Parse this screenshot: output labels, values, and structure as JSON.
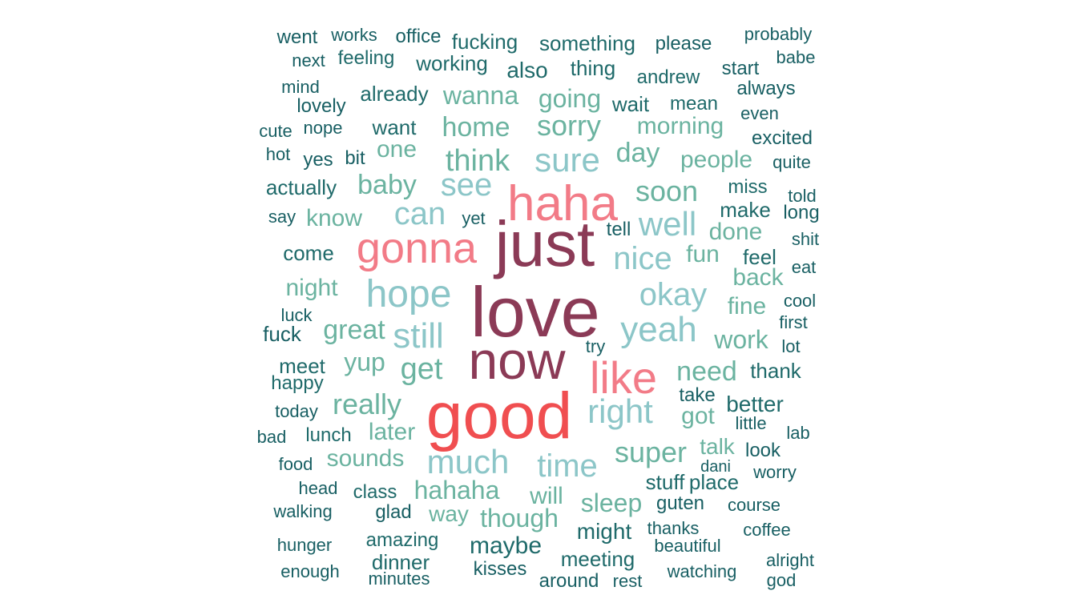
{
  "colors": {
    "t1": "#8B3A56",
    "t2": "#F27B87",
    "t3": "#F04E50",
    "t4": "#8CC6C8",
    "t5": "#6BB3A0",
    "t6": "#1F6A6A",
    "t7": "#185F63"
  },
  "words": [
    {
      "text": "love",
      "tier": "t1"
    },
    {
      "text": "just",
      "tier": "t1"
    },
    {
      "text": "now",
      "tier": "t1"
    },
    {
      "text": "good",
      "tier": "t3"
    },
    {
      "text": "haha",
      "tier": "t2"
    },
    {
      "text": "gonna",
      "tier": "t2"
    },
    {
      "text": "like",
      "tier": "t2"
    },
    {
      "text": "hope",
      "tier": "t4"
    },
    {
      "text": "yeah",
      "tier": "t4"
    },
    {
      "text": "okay",
      "tier": "t4"
    },
    {
      "text": "nice",
      "tier": "t4"
    },
    {
      "text": "right",
      "tier": "t4"
    },
    {
      "text": "much",
      "tier": "t4"
    },
    {
      "text": "still",
      "tier": "t4"
    },
    {
      "text": "time",
      "tier": "t4"
    },
    {
      "text": "sure",
      "tier": "t4"
    },
    {
      "text": "well",
      "tier": "t4"
    },
    {
      "text": "can",
      "tier": "t4"
    },
    {
      "text": "see",
      "tier": "t4"
    },
    {
      "text": "think",
      "tier": "t5"
    },
    {
      "text": "sorry",
      "tier": "t5"
    },
    {
      "text": "soon",
      "tier": "t5"
    },
    {
      "text": "home",
      "tier": "t5"
    },
    {
      "text": "really",
      "tier": "t5"
    },
    {
      "text": "get",
      "tier": "t5"
    },
    {
      "text": "great",
      "tier": "t5"
    },
    {
      "text": "need",
      "tier": "t5"
    },
    {
      "text": "baby",
      "tier": "t5"
    },
    {
      "text": "wanna",
      "tier": "t5"
    },
    {
      "text": "going",
      "tier": "t5"
    },
    {
      "text": "morning",
      "tier": "t5"
    },
    {
      "text": "day",
      "tier": "t5"
    },
    {
      "text": "people",
      "tier": "t5"
    },
    {
      "text": "fun",
      "tier": "t5"
    },
    {
      "text": "done",
      "tier": "t5"
    },
    {
      "text": "super",
      "tier": "t5"
    },
    {
      "text": "hahaha",
      "tier": "t5"
    },
    {
      "text": "sleep",
      "tier": "t5"
    },
    {
      "text": "though",
      "tier": "t5"
    },
    {
      "text": "yup",
      "tier": "t5"
    },
    {
      "text": "later",
      "tier": "t5"
    },
    {
      "text": "sounds",
      "tier": "t5"
    },
    {
      "text": "work",
      "tier": "t5"
    },
    {
      "text": "got",
      "tier": "t5"
    },
    {
      "text": "fine",
      "tier": "t5"
    },
    {
      "text": "back",
      "tier": "t5"
    },
    {
      "text": "will",
      "tier": "t5"
    },
    {
      "text": "way",
      "tier": "t5"
    },
    {
      "text": "one",
      "tier": "t5"
    },
    {
      "text": "know",
      "tier": "t5"
    },
    {
      "text": "night",
      "tier": "t5"
    },
    {
      "text": "talk",
      "tier": "t5"
    },
    {
      "text": "something",
      "tier": "t6"
    },
    {
      "text": "thing",
      "tier": "t6"
    },
    {
      "text": "working",
      "tier": "t6"
    },
    {
      "text": "also",
      "tier": "t6"
    },
    {
      "text": "andrew",
      "tier": "t6"
    },
    {
      "text": "wait",
      "tier": "t6"
    },
    {
      "text": "mean",
      "tier": "t6"
    },
    {
      "text": "want",
      "tier": "t6"
    },
    {
      "text": "already",
      "tier": "t6"
    },
    {
      "text": "fucking",
      "tier": "t6"
    },
    {
      "text": "feeling",
      "tier": "t6"
    },
    {
      "text": "miss",
      "tier": "t6"
    },
    {
      "text": "make",
      "tier": "t6"
    },
    {
      "text": "feel",
      "tier": "t6"
    },
    {
      "text": "better",
      "tier": "t6"
    },
    {
      "text": "thank",
      "tier": "t6"
    },
    {
      "text": "might",
      "tier": "t6"
    },
    {
      "text": "maybe",
      "tier": "t6"
    },
    {
      "text": "meeting",
      "tier": "t6"
    },
    {
      "text": "stuff",
      "tier": "t6"
    },
    {
      "text": "place",
      "tier": "t6"
    },
    {
      "text": "come",
      "tier": "t6"
    },
    {
      "text": "actually",
      "tier": "t6"
    },
    {
      "text": "meet",
      "tier": "t6"
    },
    {
      "text": "happy",
      "tier": "t6"
    },
    {
      "text": "lunch",
      "tier": "t6"
    },
    {
      "text": "class",
      "tier": "t6"
    },
    {
      "text": "amazing",
      "tier": "t6"
    },
    {
      "text": "dinner",
      "tier": "t6"
    },
    {
      "text": "went",
      "tier": "t7"
    },
    {
      "text": "works",
      "tier": "t7"
    },
    {
      "text": "office",
      "tier": "t7"
    },
    {
      "text": "please",
      "tier": "t7"
    },
    {
      "text": "probably",
      "tier": "t7"
    },
    {
      "text": "next",
      "tier": "t7"
    },
    {
      "text": "babe",
      "tier": "t7"
    },
    {
      "text": "start",
      "tier": "t7"
    },
    {
      "text": "mind",
      "tier": "t7"
    },
    {
      "text": "always",
      "tier": "t7"
    },
    {
      "text": "lovely",
      "tier": "t7"
    },
    {
      "text": "even",
      "tier": "t7"
    },
    {
      "text": "cute",
      "tier": "t7"
    },
    {
      "text": "nope",
      "tier": "t7"
    },
    {
      "text": "excited",
      "tier": "t7"
    },
    {
      "text": "hot",
      "tier": "t7"
    },
    {
      "text": "yes",
      "tier": "t7"
    },
    {
      "text": "bit",
      "tier": "t7"
    },
    {
      "text": "quite",
      "tier": "t7"
    },
    {
      "text": "told",
      "tier": "t7"
    },
    {
      "text": "say",
      "tier": "t7"
    },
    {
      "text": "yet",
      "tier": "t7"
    },
    {
      "text": "long",
      "tier": "t7"
    },
    {
      "text": "tell",
      "tier": "t7"
    },
    {
      "text": "shit",
      "tier": "t7"
    },
    {
      "text": "eat",
      "tier": "t7"
    },
    {
      "text": "luck",
      "tier": "t7"
    },
    {
      "text": "cool",
      "tier": "t7"
    },
    {
      "text": "fuck",
      "tier": "t7"
    },
    {
      "text": "first",
      "tier": "t7"
    },
    {
      "text": "try",
      "tier": "t7"
    },
    {
      "text": "lot",
      "tier": "t7"
    },
    {
      "text": "take",
      "tier": "t7"
    },
    {
      "text": "today",
      "tier": "t7"
    },
    {
      "text": "little",
      "tier": "t7"
    },
    {
      "text": "bad",
      "tier": "t7"
    },
    {
      "text": "lab",
      "tier": "t7"
    },
    {
      "text": "look",
      "tier": "t7"
    },
    {
      "text": "food",
      "tier": "t7"
    },
    {
      "text": "dani",
      "tier": "t7"
    },
    {
      "text": "worry",
      "tier": "t7"
    },
    {
      "text": "head",
      "tier": "t7"
    },
    {
      "text": "walking",
      "tier": "t7"
    },
    {
      "text": "glad",
      "tier": "t7"
    },
    {
      "text": "guten",
      "tier": "t7"
    },
    {
      "text": "course",
      "tier": "t7"
    },
    {
      "text": "thanks",
      "tier": "t7"
    },
    {
      "text": "coffee",
      "tier": "t7"
    },
    {
      "text": "hunger",
      "tier": "t7"
    },
    {
      "text": "beautiful",
      "tier": "t7"
    },
    {
      "text": "enough",
      "tier": "t7"
    },
    {
      "text": "minutes",
      "tier": "t7"
    },
    {
      "text": "kisses",
      "tier": "t7"
    },
    {
      "text": "around",
      "tier": "t7"
    },
    {
      "text": "rest",
      "tier": "t7"
    },
    {
      "text": "watching",
      "tier": "t7"
    },
    {
      "text": "alright",
      "tier": "t7"
    },
    {
      "text": "god",
      "tier": "t7"
    }
  ]
}
